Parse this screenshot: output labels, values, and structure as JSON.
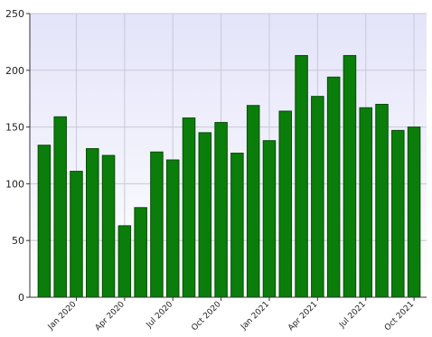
{
  "chart_data": {
    "type": "bar",
    "categories": [
      null,
      null,
      "Jan 2020",
      null,
      null,
      "Apr 2020",
      null,
      null,
      "Jul 2020",
      null,
      null,
      "Oct 2020",
      null,
      null,
      "Jan 2021",
      null,
      null,
      "Apr 2021",
      null,
      null,
      "Jul 2021",
      null,
      null,
      "Oct 2021"
    ],
    "values": [
      134,
      159,
      111,
      131,
      125,
      63,
      79,
      128,
      121,
      158,
      145,
      154,
      127,
      169,
      138,
      164,
      213,
      177,
      194,
      213,
      167,
      170,
      147,
      150
    ],
    "color": "#0a7d0a",
    "ylim": [
      0,
      250
    ],
    "yticks": [
      0,
      50,
      100,
      150,
      200,
      250
    ],
    "grid": true
  }
}
